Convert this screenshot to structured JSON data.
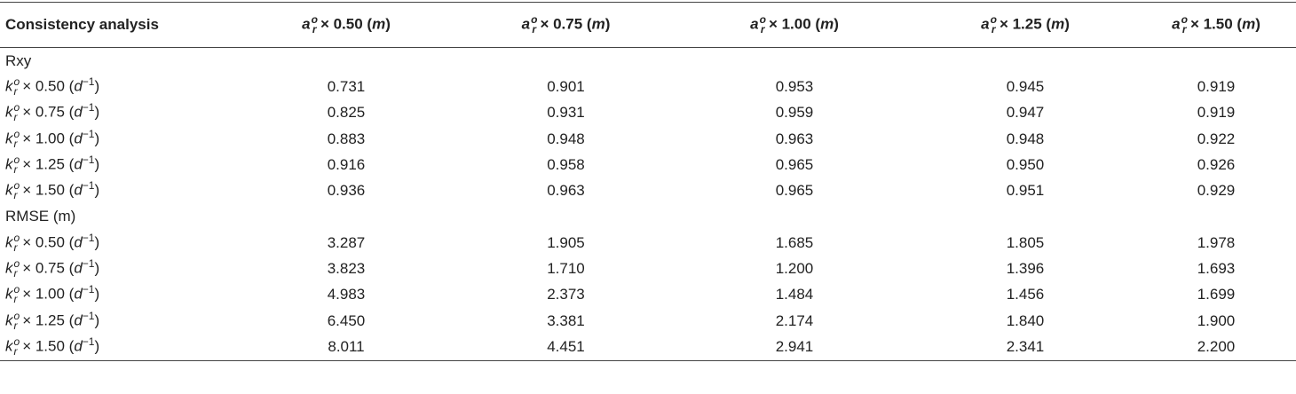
{
  "table": {
    "header": {
      "title": "Consistency analysis",
      "columns": [
        {
          "base": "a",
          "sup": "o",
          "sub": "r",
          "rest": "× 0.50 (",
          "unit": "m",
          "close": ")"
        },
        {
          "base": "a",
          "sup": "o",
          "sub": "r",
          "rest": "× 0.75 (",
          "unit": "m",
          "close": ")"
        },
        {
          "base": "a",
          "sup": "o",
          "sub": "r",
          "rest": "× 1.00 (",
          "unit": "m",
          "close": ")"
        },
        {
          "base": "a",
          "sup": "o",
          "sub": "r",
          "rest": "× 1.25 (",
          "unit": "m",
          "close": ")"
        },
        {
          "base": "a",
          "sup": "o",
          "sub": "r",
          "rest": "× 1.50 (",
          "unit": "m",
          "close": ")"
        }
      ]
    },
    "sections": [
      {
        "label": "Rxy",
        "rows": [
          {
            "label": {
              "base": "k",
              "sup": "o",
              "sub": "r",
              "rest": "× 0.50 (",
              "unit": "d",
              "unit_sup": "−1",
              "close": ")"
            },
            "cells": [
              "0.731",
              "0.901",
              "0.953",
              "0.945",
              "0.919"
            ]
          },
          {
            "label": {
              "base": "k",
              "sup": "o",
              "sub": "r",
              "rest": "× 0.75 (",
              "unit": "d",
              "unit_sup": "−1",
              "close": ")"
            },
            "cells": [
              "0.825",
              "0.931",
              "0.959",
              "0.947",
              "0.919"
            ]
          },
          {
            "label": {
              "base": "k",
              "sup": "o",
              "sub": "r",
              "rest": "× 1.00 (",
              "unit": "d",
              "unit_sup": "−1",
              "close": ")"
            },
            "cells": [
              "0.883",
              "0.948",
              "0.963",
              "0.948",
              "0.922"
            ]
          },
          {
            "label": {
              "base": "k",
              "sup": "o",
              "sub": "r",
              "rest": "× 1.25 (",
              "unit": "d",
              "unit_sup": "−1",
              "close": ")"
            },
            "cells": [
              "0.916",
              "0.958",
              "0.965",
              "0.950",
              "0.926"
            ]
          },
          {
            "label": {
              "base": "k",
              "sup": "o",
              "sub": "r",
              "rest": "× 1.50 (",
              "unit": "d",
              "unit_sup": "−1",
              "close": ")"
            },
            "cells": [
              "0.936",
              "0.963",
              "0.965",
              "0.951",
              "0.929"
            ]
          }
        ]
      },
      {
        "label": "RMSE (m)",
        "rows": [
          {
            "label": {
              "base": "k",
              "sup": "o",
              "sub": "r",
              "rest": "× 0.50 (",
              "unit": "d",
              "unit_sup": "−1",
              "close": ")"
            },
            "cells": [
              "3.287",
              "1.905",
              "1.685",
              "1.805",
              "1.978"
            ]
          },
          {
            "label": {
              "base": "k",
              "sup": "o",
              "sub": "r",
              "rest": "× 0.75 (",
              "unit": "d",
              "unit_sup": "−1",
              "close": ")"
            },
            "cells": [
              "3.823",
              "1.710",
              "1.200",
              "1.396",
              "1.693"
            ]
          },
          {
            "label": {
              "base": "k",
              "sup": "o",
              "sub": "r",
              "rest": "× 1.00 (",
              "unit": "d",
              "unit_sup": "−1",
              "close": ")"
            },
            "cells": [
              "4.983",
              "2.373",
              "1.484",
              "1.456",
              "1.699"
            ]
          },
          {
            "label": {
              "base": "k",
              "sup": "o",
              "sub": "r",
              "rest": "× 1.25 (",
              "unit": "d",
              "unit_sup": "−1",
              "close": ")"
            },
            "cells": [
              "6.450",
              "3.381",
              "2.174",
              "1.840",
              "1.900"
            ]
          },
          {
            "label": {
              "base": "k",
              "sup": "o",
              "sub": "r",
              "rest": "× 1.50 (",
              "unit": "d",
              "unit_sup": "−1",
              "close": ")"
            },
            "cells": [
              "8.011",
              "4.451",
              "2.941",
              "2.341",
              "2.200"
            ]
          }
        ]
      }
    ]
  }
}
